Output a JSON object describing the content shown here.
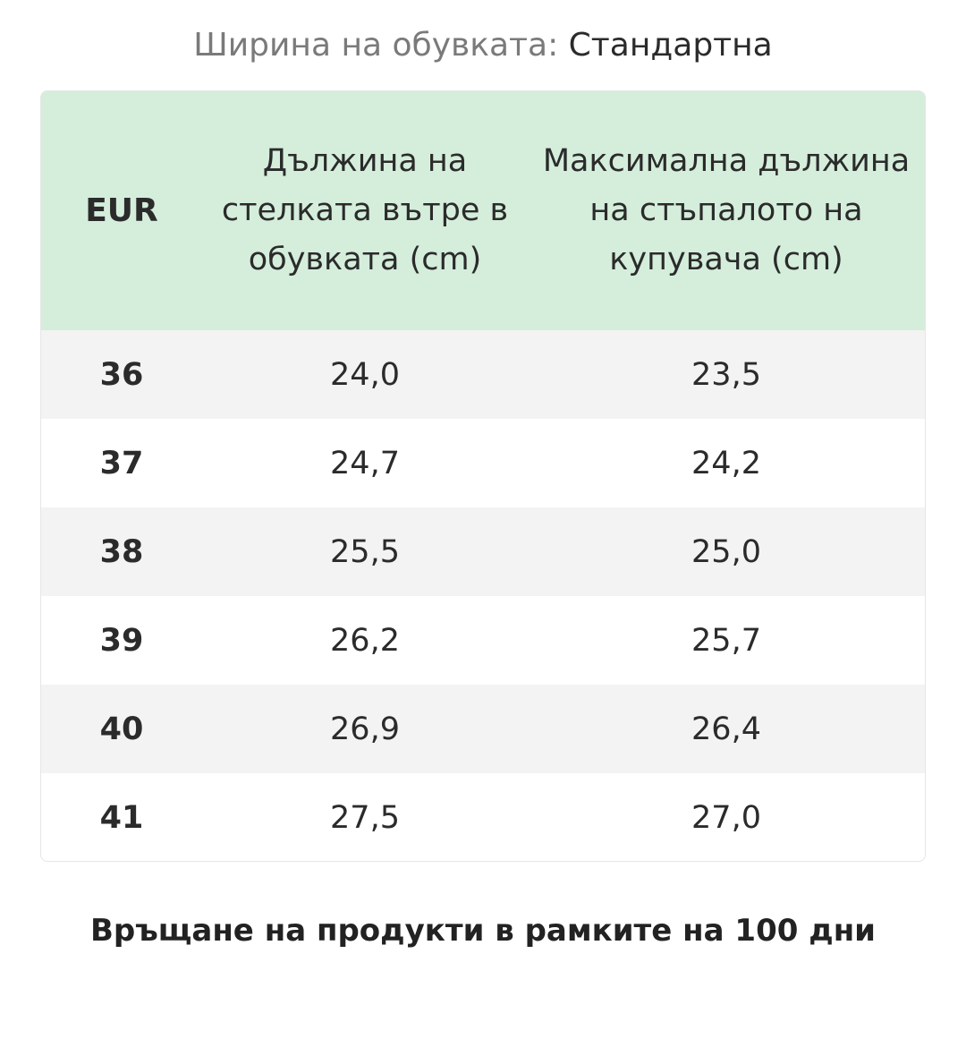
{
  "title": {
    "label": "Ширина на обувката:",
    "value": "Стандартна"
  },
  "table": {
    "headers": [
      "EUR",
      "Дължина на стелката вътре в обувката (cm)",
      "Максимална дължина на стъпалото на купувача (cm)"
    ],
    "rows": [
      [
        "36",
        "24,0",
        "23,5"
      ],
      [
        "37",
        "24,7",
        "24,2"
      ],
      [
        "38",
        "25,5",
        "25,0"
      ],
      [
        "39",
        "26,2",
        "25,7"
      ],
      [
        "40",
        "26,9",
        "26,4"
      ],
      [
        "41",
        "27,5",
        "27,0"
      ]
    ]
  },
  "footer": "Връщане на продукти в рамките на 100 дни",
  "colors": {
    "header_bg": "#d4eedb",
    "stripe_bg": "#f3f3f3"
  }
}
